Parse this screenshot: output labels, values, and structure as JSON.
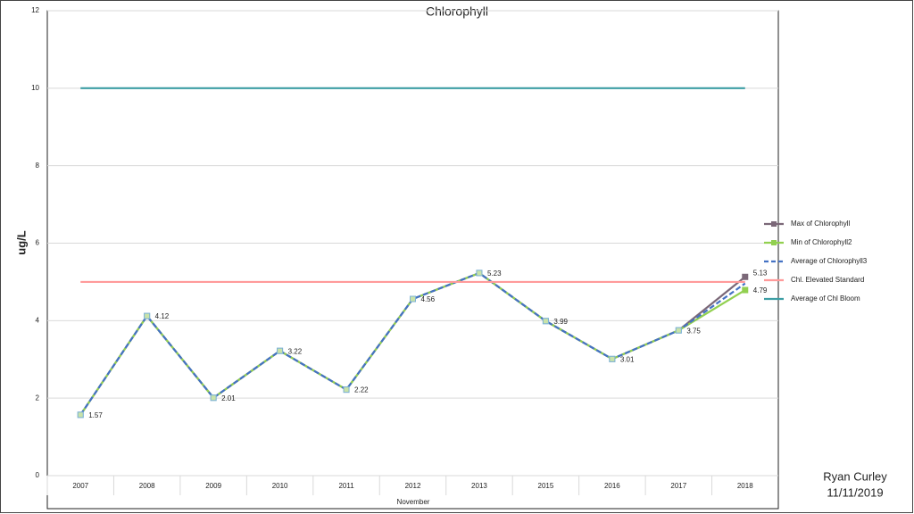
{
  "chart_data": {
    "type": "line",
    "title": "Chlorophyll",
    "y_label": "ug/L",
    "x_label": "November",
    "categories": [
      "2007",
      "2008",
      "2009",
      "2010",
      "2011",
      "2012",
      "2013",
      "2015",
      "2016",
      "2017",
      "2018"
    ],
    "series": [
      {
        "name": "Max of Chlorophyll",
        "color": "#7b6878",
        "marker": "square",
        "data_labels": "all",
        "values": [
          1.57,
          4.12,
          2.01,
          3.22,
          2.22,
          4.56,
          5.23,
          3.99,
          3.01,
          3.75,
          5.13
        ]
      },
      {
        "name": "Min of Chlorophyll2",
        "color": "#92d050",
        "marker": "square",
        "data_labels": "last",
        "values": [
          1.57,
          4.12,
          2.01,
          3.22,
          2.22,
          4.56,
          5.23,
          3.99,
          3.01,
          3.75,
          4.79
        ]
      },
      {
        "name": "Average of Chlorophyll3",
        "color": "#4472c4",
        "dash": true,
        "values": [
          1.57,
          4.12,
          2.01,
          3.22,
          2.22,
          4.56,
          5.23,
          3.99,
          3.01,
          3.75,
          4.96
        ]
      },
      {
        "name": "Chl. Elevated Standard",
        "color": "#ff9a9a",
        "values": [
          5,
          5,
          5,
          5,
          5,
          5,
          5,
          5,
          5,
          5,
          5
        ]
      },
      {
        "name": "Average of Chl Bloom",
        "color": "#3d9ea4",
        "values": [
          10,
          10,
          10,
          10,
          10,
          10,
          10,
          10,
          10,
          10,
          10
        ]
      }
    ],
    "ylim": [
      0,
      12
    ],
    "yticks": [
      0,
      2,
      4,
      6,
      8,
      10,
      12
    ],
    "grid": true,
    "legend": "right"
  },
  "footer": {
    "author": "Ryan Curley",
    "date": "11/11/2019"
  }
}
